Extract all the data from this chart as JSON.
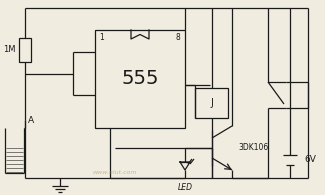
{
  "bg_color": "#f0ece0",
  "line_color": "#1a1a1a",
  "text_color": "#1a1a1a",
  "fig_width": 3.25,
  "fig_height": 1.95,
  "dpi": 100,
  "labels": {
    "resistor": "1M",
    "ic": "555",
    "relay": "J",
    "transistor": "3DK106",
    "led": "LED",
    "supply": "6V",
    "probe": "A",
    "pin1": "1",
    "pin8": "8",
    "watermark": "www.elut.com"
  }
}
